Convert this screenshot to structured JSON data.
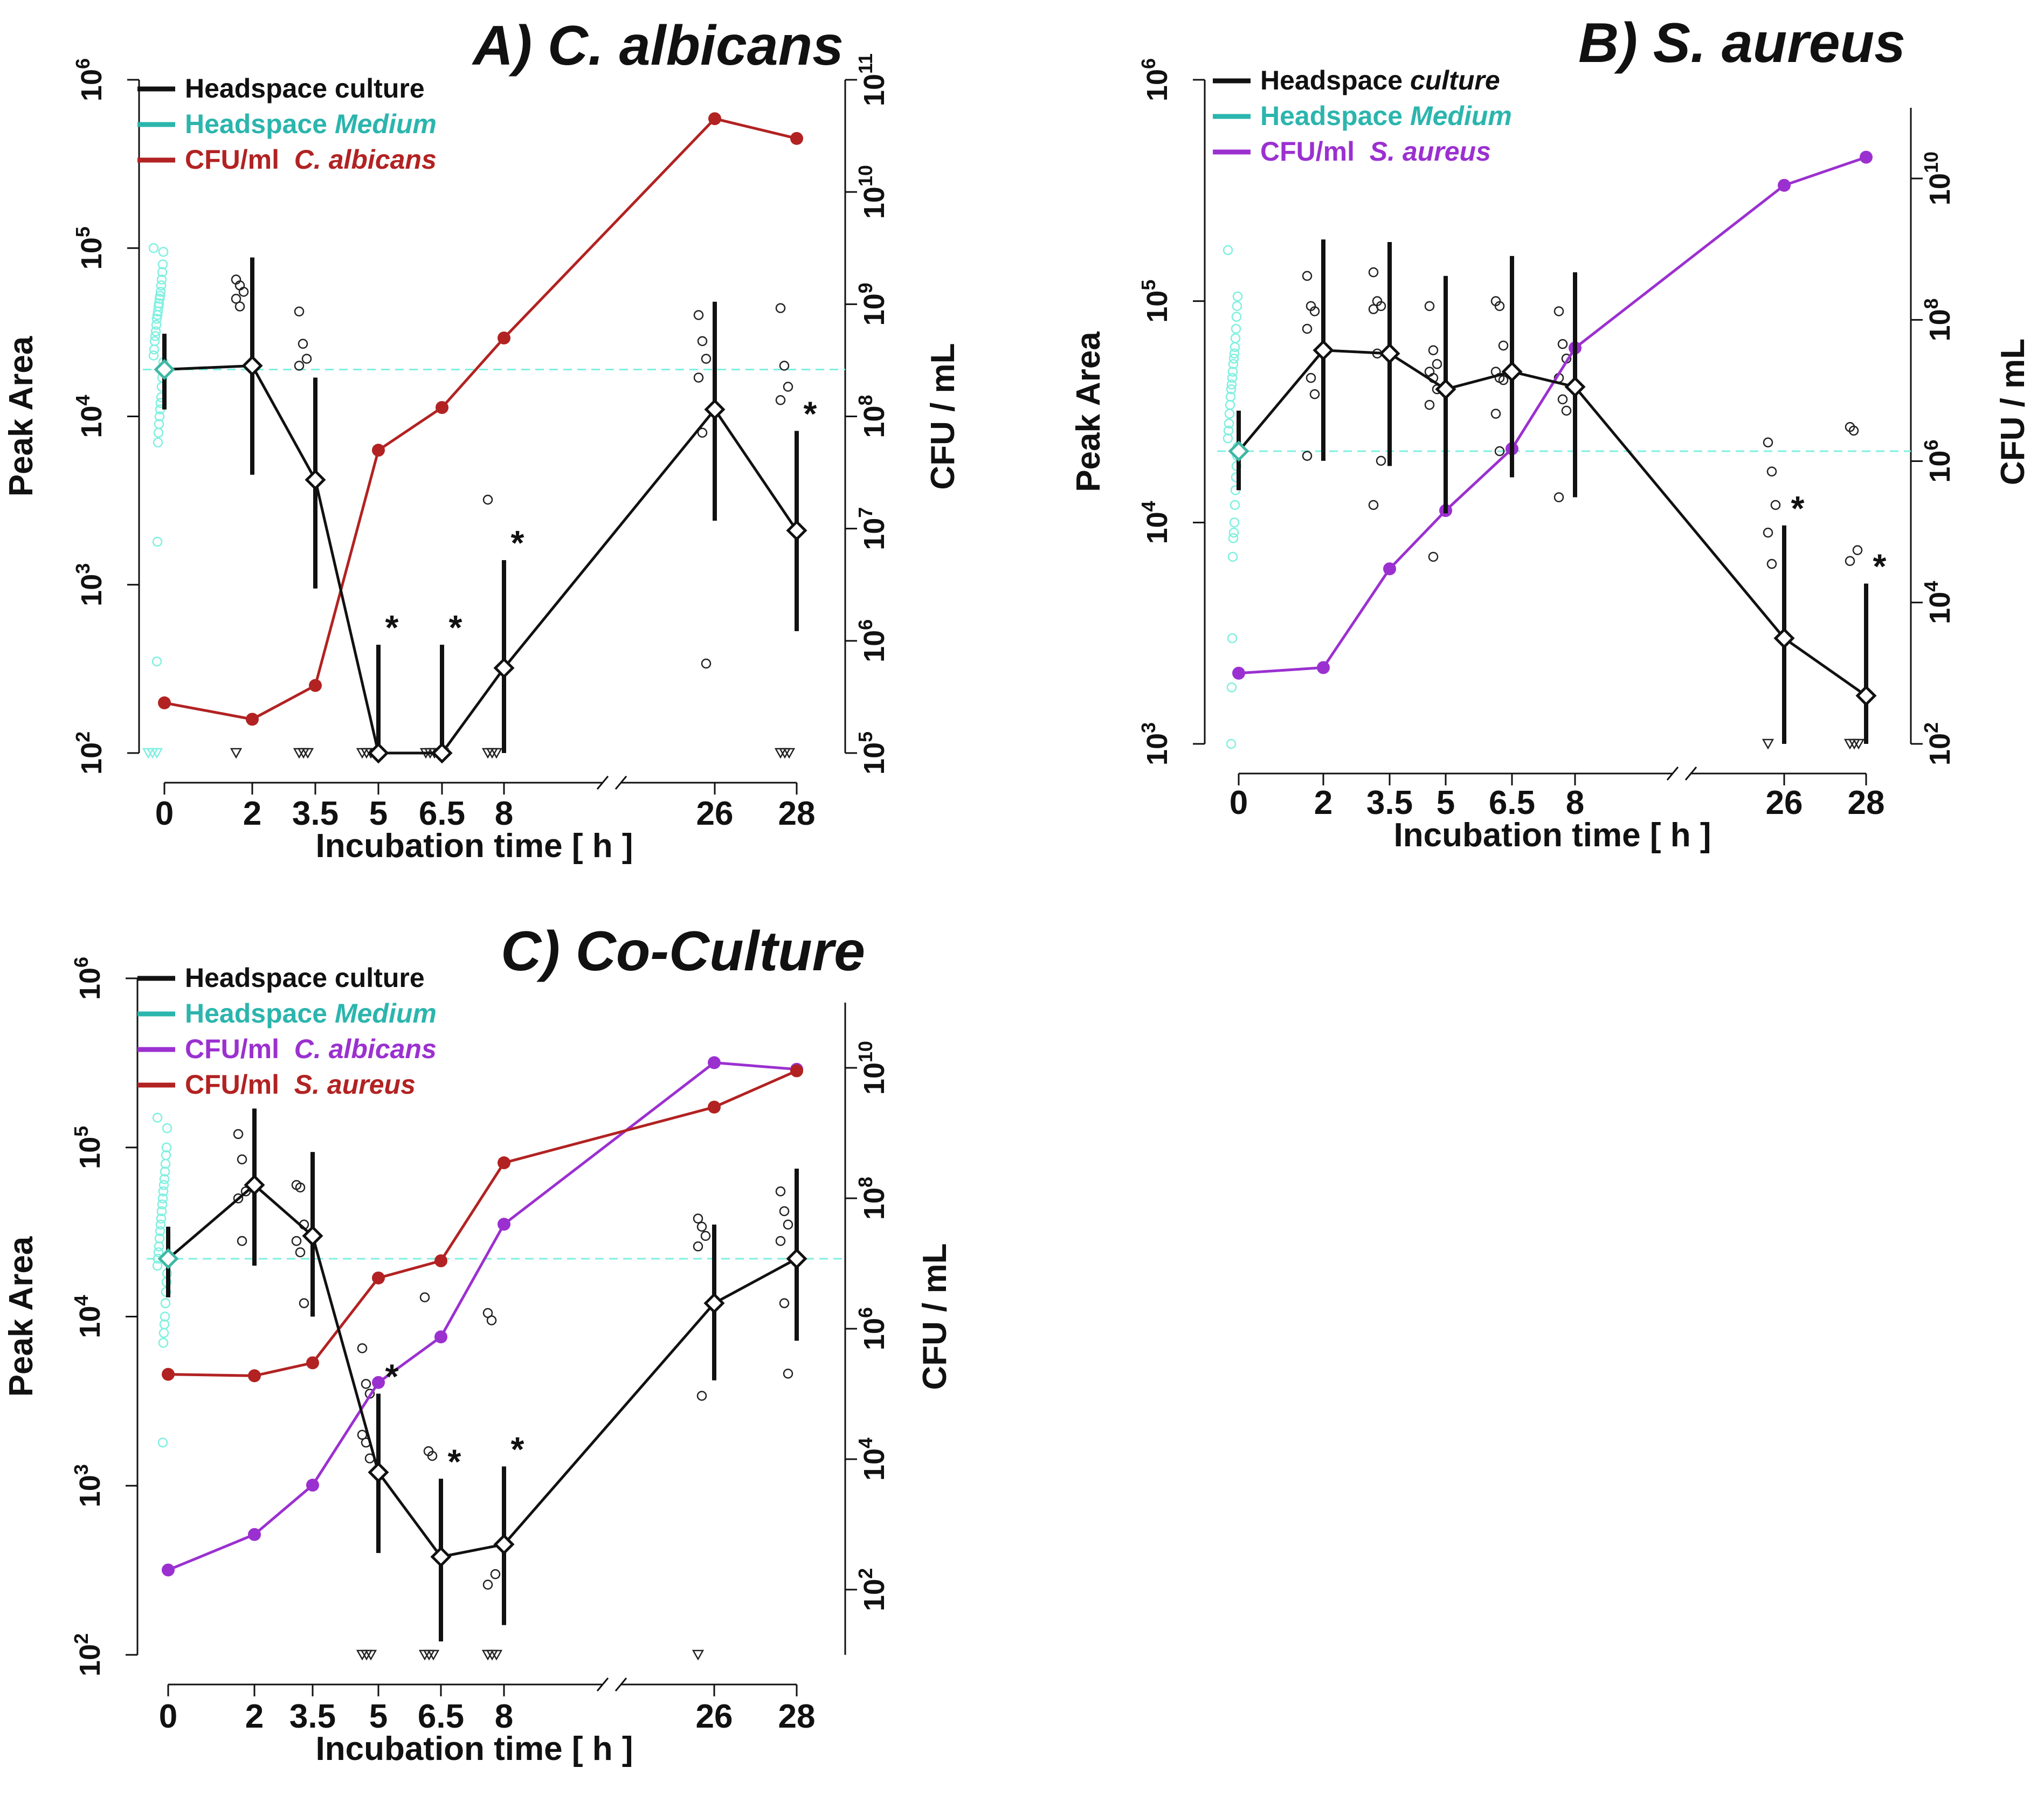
{
  "chart_data": [
    {
      "panel_id": "A",
      "type": "line",
      "title": "A) C. albicans",
      "xlabel": "Incubation time  [ h ]",
      "ylabel_left": "Peak Area",
      "ylabel_right": "CFU / mL",
      "x_ticks": [
        "0",
        "2",
        "3.5",
        "5",
        "6.5",
        "8",
        "26",
        "28"
      ],
      "left_axis": {
        "scale": "log10",
        "ylim": [
          100,
          1000000
        ],
        "ticks": [
          100,
          1000,
          10000,
          100000,
          1000000
        ],
        "tick_labels": [
          "10",
          "10",
          "10",
          "10",
          "10"
        ],
        "tick_exponents": [
          "2",
          "3",
          "4",
          "5",
          "6"
        ]
      },
      "right_axis": {
        "scale": "log10",
        "ylim": [
          100000,
          100000000000
        ],
        "ticks": [
          100000,
          1000000,
          10000000,
          100000000,
          1000000000,
          10000000000,
          100000000000
        ],
        "tick_labels": [
          "10",
          "10",
          "10",
          "10",
          "10",
          "10",
          "10"
        ],
        "tick_exponents": [
          "5",
          "6",
          "7",
          "8",
          "9",
          "10",
          "11"
        ]
      },
      "legend": [
        {
          "label": "Headspace culture",
          "italic_part": "",
          "color": "#111111"
        },
        {
          "label": "Headspace ",
          "italic_part": "Medium",
          "color": "#2bb5ad"
        },
        {
          "label": "CFU/ml  ",
          "italic_part": "C. albicans",
          "color": "#b22222"
        }
      ],
      "medium_reference": {
        "value": 19000,
        "err_low": 11000,
        "err_high": 31000,
        "color": "#7ff0e0"
      },
      "medium_points": [
        100000,
        95000,
        80000,
        72000,
        65000,
        60000,
        55000,
        52000,
        50000,
        47000,
        45000,
        42000,
        40000,
        38000,
        35000,
        32000,
        30000,
        28000,
        25000,
        23000,
        21000,
        19000,
        17000,
        15000,
        13000,
        12000,
        11000,
        10000,
        9000,
        8000,
        7000,
        1800,
        350
      ],
      "culture_series": {
        "name": "Headspace culture",
        "color": "#111111",
        "values": [
          19000,
          20000,
          4200,
          100,
          100,
          320,
          11000,
          2100
        ],
        "err_low": [
          11000,
          4500,
          950,
          100,
          100,
          100,
          2400,
          530
        ],
        "err_high": [
          31000,
          88000,
          17000,
          440,
          440,
          1400,
          48000,
          8200
        ]
      },
      "raw_points": [
        [],
        [
          65000,
          60000,
          55000,
          50000,
          45000
        ],
        [
          42000,
          27000,
          22000,
          20000
        ],
        [],
        [],
        [
          3200
        ],
        [
          40000,
          28000,
          22000,
          17000,
          8000,
          340
        ],
        [
          44000,
          20000,
          15000,
          12500
        ]
      ],
      "below_detection": [
        3,
        1,
        3,
        4,
        5,
        3,
        0,
        3
      ],
      "significant": [
        false,
        false,
        false,
        true,
        true,
        true,
        false,
        true
      ],
      "cfu_series": [
        {
          "name": "CFU/ml C. albicans",
          "color": "#b22222",
          "values": [
            280000,
            200000,
            400000,
            50000000,
            120000000,
            500000000,
            45000000000,
            30000000000
          ]
        }
      ]
    },
    {
      "panel_id": "B",
      "type": "line",
      "title": "B) S. aureus",
      "xlabel": "Incubation time  [ h ]",
      "ylabel_left": "Peak Area",
      "ylabel_right": "CFU / mL",
      "x_ticks": [
        "0",
        "2",
        "3.5",
        "5",
        "6.5",
        "8",
        "26",
        "28"
      ],
      "left_axis": {
        "scale": "log10",
        "ylim": [
          1000,
          1000000
        ],
        "ticks": [
          1000,
          10000,
          100000,
          1000000
        ],
        "tick_labels": [
          "10",
          "10",
          "10",
          "10"
        ],
        "tick_exponents": [
          "3",
          "4",
          "5",
          "6"
        ]
      },
      "right_axis": {
        "scale": "log10",
        "ylim": [
          100,
          100000000000
        ],
        "ticks": [
          100,
          10000,
          1000000,
          100000000,
          10000000000
        ],
        "tick_labels": [
          "10",
          "10",
          "10",
          "10",
          "10"
        ],
        "tick_exponents": [
          "2",
          "4",
          "6",
          "8",
          "10"
        ]
      },
      "legend": [
        {
          "label": "Headspace ",
          "italic_part": "culture",
          "color": "#111111"
        },
        {
          "label": "Headspace ",
          "italic_part": "Medium",
          "color": "#2bb5ad"
        },
        {
          "label": "CFU/ml  ",
          "italic_part": "S. aureus",
          "color": "#9b30d0"
        }
      ],
      "medium_reference": {
        "value": 21000,
        "err_low": 14000,
        "err_high": 32000,
        "color": "#7ff0e0"
      },
      "medium_points": [
        170000,
        105000,
        95000,
        85000,
        75000,
        68000,
        62000,
        58000,
        55000,
        52000,
        48000,
        45000,
        42000,
        40000,
        37000,
        34000,
        31000,
        28000,
        26000,
        24000,
        22000,
        20000,
        18000,
        16000,
        14000,
        12000,
        10000,
        9000,
        8500,
        7000,
        3000,
        1800,
        1000
      ],
      "culture_series": {
        "name": "Headspace culture",
        "color": "#111111",
        "values": [
          21000,
          60000,
          58000,
          40000,
          48000,
          41000,
          3000,
          1650
        ],
        "err_low": [
          14000,
          19000,
          18000,
          11000,
          16000,
          13000,
          1000,
          1000
        ],
        "err_high": [
          32000,
          190000,
          185000,
          130000,
          160000,
          135000,
          9700,
          5300
        ]
      },
      "raw_points": [
        [],
        [
          130000,
          95000,
          90000,
          75000,
          45000,
          38000,
          20000
        ],
        [
          135000,
          100000,
          95000,
          92000,
          58000,
          19000,
          12000
        ],
        [
          95000,
          60000,
          52000,
          48000,
          45000,
          40000,
          34000,
          7000
        ],
        [
          100000,
          95000,
          63000,
          48000,
          45000,
          44000,
          31000,
          21000
        ],
        [
          90000,
          64000,
          55000,
          45000,
          36000,
          32000,
          13000
        ],
        [
          23000,
          17000,
          12000,
          9000,
          6500
        ],
        [
          27000,
          26000,
          7500,
          6700
        ]
      ],
      "below_detection": [
        0,
        0,
        0,
        0,
        0,
        0,
        1,
        3
      ],
      "significant": [
        false,
        false,
        false,
        false,
        false,
        false,
        true,
        true
      ],
      "cfu_series": [
        {
          "name": "CFU/ml S. aureus",
          "color": "#9b30d0",
          "values": [
            1000,
            1200,
            30000,
            200000,
            1500000,
            40000000,
            8000000000,
            20000000000
          ]
        }
      ]
    },
    {
      "panel_id": "C",
      "type": "line",
      "title": "C) Co-Culture",
      "xlabel": "Incubation time  [ h ]",
      "ylabel_left": "Peak Area",
      "ylabel_right": "CFU / mL",
      "x_ticks": [
        "0",
        "2",
        "3.5",
        "5",
        "6.5",
        "8",
        "26",
        "28"
      ],
      "left_axis": {
        "scale": "log10",
        "ylim": [
          100,
          1000000
        ],
        "ticks": [
          100,
          1000,
          10000,
          100000,
          1000000
        ],
        "tick_labels": [
          "10",
          "10",
          "10",
          "10",
          "10"
        ],
        "tick_exponents": [
          "2",
          "3",
          "4",
          "5",
          "6"
        ]
      },
      "right_axis": {
        "scale": "log10",
        "ylim": [
          10,
          100000000000
        ],
        "ticks": [
          100,
          10000,
          1000000,
          100000000,
          10000000000
        ],
        "tick_labels": [
          "10",
          "10",
          "10",
          "10",
          "10"
        ],
        "tick_exponents": [
          "2",
          "4",
          "6",
          "8",
          "10"
        ]
      },
      "legend": [
        {
          "label": "Headspace culture",
          "italic_part": "",
          "color": "#111111"
        },
        {
          "label": "Headspace ",
          "italic_part": "Medium",
          "color": "#2bb5ad"
        },
        {
          "label": "CFU/ml  ",
          "italic_part": "C. albicans",
          "color": "#9b30d0"
        },
        {
          "label": "CFU/ml  ",
          "italic_part": "S. aureus",
          "color": "#b22222"
        }
      ],
      "medium_reference": {
        "value": 22000,
        "err_low": 13000,
        "err_high": 34000,
        "color": "#7ff0e0"
      },
      "medium_points": [
        150000,
        130000,
        100000,
        90000,
        80000,
        72000,
        65000,
        60000,
        55000,
        50000,
        46000,
        42000,
        38000,
        35000,
        32000,
        29000,
        26000,
        24000,
        22000,
        20000,
        18000,
        16000,
        14000,
        12000,
        10000,
        9000,
        8000,
        7000,
        1800
      ],
      "culture_series": {
        "name": "Headspace culture",
        "color": "#111111",
        "values": [
          22000,
          60000,
          30000,
          1200,
          380,
          450,
          12000,
          22000
        ],
        "err_low": [
          13000,
          20000,
          10000,
          400,
          120,
          150,
          4200,
          7200
        ],
        "err_high": [
          34000,
          170000,
          94000,
          3500,
          1100,
          1300,
          35000,
          75000
        ]
      },
      "raw_points": [
        [],
        [
          120000,
          85000,
          55000,
          50000,
          28000
        ],
        [
          60000,
          58000,
          35000,
          28000,
          24000,
          12000
        ],
        [
          6500,
          4000,
          3500,
          2000,
          1800,
          1450
        ],
        [
          13000,
          1600,
          1500
        ],
        [
          10500,
          9500,
          300,
          260
        ],
        [
          38000,
          34000,
          30000,
          26000,
          3400
        ],
        [
          55000,
          42000,
          35000,
          28000,
          12000,
          4600
        ]
      ],
      "below_detection": [
        0,
        0,
        0,
        3,
        3,
        3,
        1,
        0
      ],
      "significant": [
        false,
        false,
        false,
        true,
        true,
        true,
        false,
        false
      ],
      "cfu_series": [
        {
          "name": "CFU/ml C. albicans",
          "color": "#9b30d0",
          "values": [
            200,
            700,
            4000,
            150000,
            750000,
            40000000,
            12000000000,
            9500000000
          ]
        },
        {
          "name": "CFU/ml S. aureus",
          "color": "#b22222",
          "values": [
            200000,
            190000,
            300000,
            6000000,
            11000000,
            350000000,
            2500000000,
            9000000000
          ]
        }
      ]
    }
  ]
}
